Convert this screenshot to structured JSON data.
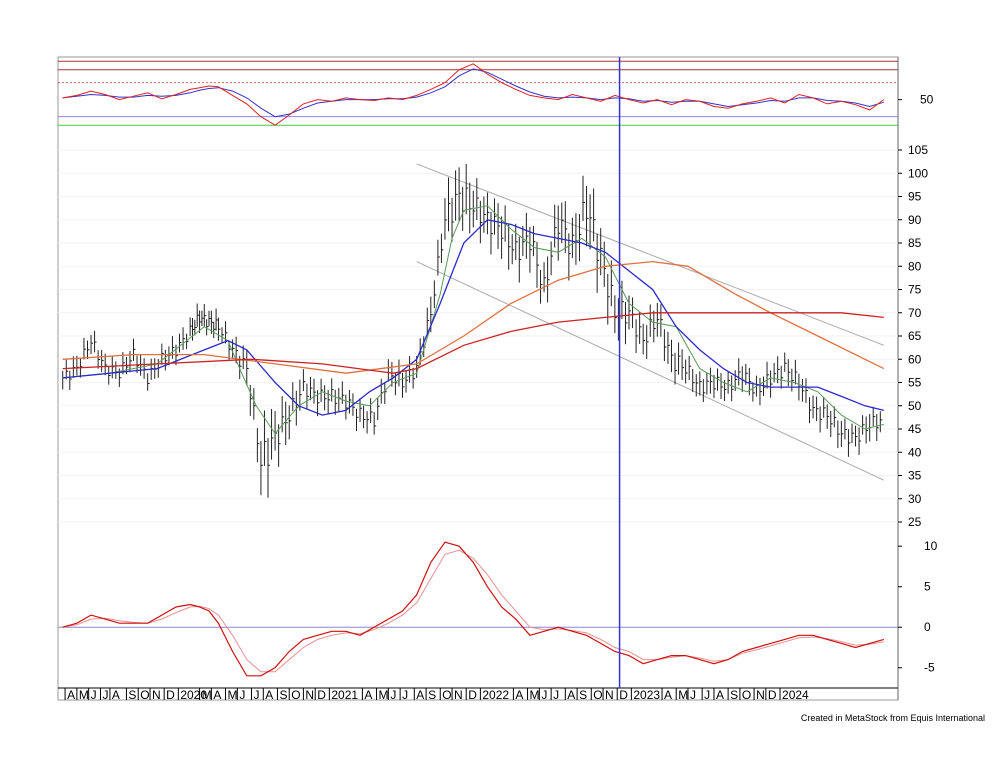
{
  "credit": "Created in MetaStock from Equis International",
  "colors": {
    "price_bars": "#222222",
    "ma_short": "#5a9a5a",
    "ma_mid": "#2a2acc",
    "ma_long_orange": "#e07040",
    "ma_long_red": "#cc2222",
    "channel": "#aaaaaa",
    "cursor": "#3333dd",
    "rsi": "#dd2222",
    "rsi_signal": "#3333cc",
    "macd": "#cc1111",
    "macd_signal": "#e89090",
    "overbought": "#aa3333",
    "oversold": "#8888ee",
    "floor": "#44cc44"
  },
  "chart_data": [
    {
      "panel": "rsi",
      "type": "line",
      "yticks": [
        50
      ],
      "ylim": [
        5,
        100
      ],
      "reference_levels": [
        95,
        85,
        70,
        30,
        20
      ],
      "x": [
        0,
        6,
        12,
        18,
        24,
        30,
        36,
        42,
        48,
        54,
        58,
        62,
        66,
        72,
        78,
        84,
        90,
        96,
        102,
        108,
        114,
        120,
        126,
        132,
        138,
        144,
        150,
        156,
        162,
        168,
        174,
        180,
        186,
        192,
        198,
        204,
        210,
        216,
        222,
        228,
        234,
        240,
        246,
        252,
        258,
        264,
        270,
        276,
        282,
        288,
        294,
        300,
        306,
        312,
        318,
        324,
        330,
        336,
        342,
        348
      ],
      "series": [
        {
          "values": [
            52,
            55,
            60,
            56,
            50,
            54,
            58,
            51,
            56,
            62,
            64,
            66,
            65,
            55,
            45,
            30,
            20,
            32,
            45,
            50,
            48,
            52,
            50,
            49,
            52,
            50,
            55,
            62,
            70,
            85,
            92,
            80,
            70,
            62,
            55,
            52,
            50,
            56,
            52,
            48,
            55,
            50,
            46,
            50,
            44,
            50,
            48,
            42,
            40,
            45,
            48,
            52,
            46,
            56,
            52,
            45,
            48,
            44,
            38,
            50
          ]
        },
        {
          "values": [
            52,
            54,
            56,
            55,
            53,
            53,
            55,
            54,
            55,
            58,
            61,
            63,
            64,
            60,
            52,
            40,
            30,
            33,
            40,
            46,
            48,
            50,
            50,
            50,
            51,
            51,
            53,
            58,
            65,
            78,
            86,
            82,
            74,
            66,
            59,
            54,
            52,
            53,
            52,
            50,
            52,
            51,
            48,
            49,
            47,
            48,
            48,
            45,
            42,
            44,
            46,
            49,
            48,
            52,
            52,
            49,
            48,
            46,
            42,
            47
          ]
        }
      ]
    },
    {
      "panel": "price",
      "type": "ohlc",
      "yticks": [
        25,
        30,
        35,
        40,
        45,
        50,
        55,
        60,
        65,
        70,
        75,
        80,
        85,
        90,
        95,
        100,
        105
      ],
      "ylim": [
        25,
        105
      ],
      "x": [
        0,
        6,
        12,
        18,
        24,
        30,
        36,
        42,
        48,
        54,
        58,
        62,
        66,
        72,
        78,
        84,
        90,
        96,
        102,
        108,
        114,
        120,
        126,
        132,
        138,
        144,
        150,
        156,
        162,
        168,
        174,
        180,
        186,
        192,
        198,
        204,
        210,
        216,
        222,
        228,
        234,
        240,
        246,
        252,
        258,
        264,
        270,
        276,
        282,
        288,
        294,
        300,
        306,
        312,
        318,
        324,
        330,
        336,
        342,
        348
      ],
      "close": [
        56,
        58,
        64,
        58,
        57,
        61,
        56,
        60,
        62,
        66,
        69,
        68,
        67,
        62,
        58,
        38,
        43,
        48,
        54,
        52,
        52,
        51,
        48,
        47,
        57,
        55,
        58,
        70,
        90,
        95,
        93,
        90,
        88,
        83,
        86,
        75,
        90,
        84,
        93,
        82,
        70,
        70,
        64,
        69,
        60,
        58,
        54,
        55,
        54,
        57,
        53,
        56,
        58,
        55,
        49,
        48,
        44,
        43,
        46,
        47
      ],
      "spread": [
        2.5,
        2.5,
        2.5,
        2.5,
        2.5,
        2.5,
        2.5,
        2.5,
        2.5,
        2.5,
        2.5,
        2.5,
        2.5,
        3,
        4,
        7,
        5,
        4,
        3,
        3,
        3,
        3,
        3,
        3,
        3,
        3,
        3,
        4,
        6,
        6,
        5,
        5,
        5,
        5,
        5,
        5,
        6,
        6,
        7,
        6,
        5,
        4,
        4,
        4,
        4,
        3,
        3,
        3,
        3,
        3,
        3,
        3,
        3,
        3,
        3,
        3,
        3,
        3,
        3,
        3
      ],
      "series": [
        {
          "name": "",
          "style": "ma_short",
          "x": [
            0,
            20,
            40,
            60,
            70,
            75,
            82,
            90,
            100,
            110,
            120,
            130,
            140,
            150,
            160,
            165,
            170,
            180,
            190,
            200,
            210,
            220,
            230,
            240,
            250,
            260,
            270,
            280,
            290,
            300,
            310,
            320,
            330,
            340,
            348
          ],
          "values": [
            56,
            57,
            59,
            67,
            64,
            58,
            50,
            44,
            50,
            53,
            51,
            50,
            55,
            57,
            74,
            86,
            92,
            93,
            88,
            84,
            83,
            86,
            82,
            72,
            68,
            67,
            58,
            55,
            53,
            56,
            55,
            53,
            48,
            45,
            46
          ]
        },
        {
          "name": "",
          "style": "ma_mid",
          "x": [
            0,
            20,
            40,
            60,
            70,
            78,
            90,
            100,
            110,
            120,
            130,
            140,
            150,
            160,
            170,
            180,
            190,
            200,
            210,
            220,
            230,
            240,
            250,
            260,
            270,
            280,
            290,
            300,
            310,
            320,
            330,
            340,
            348
          ],
          "values": [
            56,
            57,
            58,
            62,
            64,
            62,
            55,
            50,
            48,
            49,
            53,
            56,
            60,
            72,
            85,
            90,
            89,
            87,
            86,
            85,
            83,
            79,
            75,
            67,
            62,
            58,
            55,
            54,
            54,
            54,
            52,
            50,
            49
          ]
        },
        {
          "name": "",
          "style": "ma_long_orange",
          "x": [
            0,
            30,
            60,
            90,
            120,
            150,
            170,
            190,
            210,
            230,
            250,
            265,
            275,
            285,
            300,
            320,
            340,
            348
          ],
          "values": [
            60,
            61,
            61,
            59,
            57,
            59,
            65,
            72,
            77,
            80,
            81,
            80,
            77,
            74,
            70,
            65,
            60,
            58
          ]
        },
        {
          "name": "",
          "style": "ma_long_red",
          "x": [
            0,
            40,
            80,
            110,
            140,
            150,
            170,
            190,
            210,
            230,
            250,
            270,
            300,
            330,
            348
          ],
          "values": [
            58,
            59,
            60,
            59,
            57,
            58,
            63,
            66,
            68,
            69,
            70,
            70,
            70,
            70,
            69
          ]
        }
      ],
      "channel": [
        {
          "x": [
            150,
            348
          ],
          "values": [
            102,
            63
          ]
        },
        {
          "x": [
            150,
            348
          ],
          "values": [
            81,
            34
          ]
        }
      ]
    },
    {
      "panel": "macd",
      "type": "line",
      "yticks": [
        10,
        5,
        0,
        -5
      ],
      "ylim": [
        -7.5,
        12
      ],
      "x": [
        0,
        6,
        12,
        18,
        24,
        30,
        36,
        42,
        48,
        54,
        58,
        62,
        66,
        72,
        78,
        84,
        90,
        96,
        102,
        108,
        114,
        120,
        126,
        132,
        138,
        144,
        150,
        156,
        162,
        168,
        174,
        180,
        186,
        192,
        198,
        204,
        210,
        216,
        222,
        228,
        234,
        240,
        246,
        252,
        258,
        264,
        270,
        276,
        282,
        288,
        294,
        300,
        306,
        312,
        318,
        324,
        330,
        336,
        342,
        348
      ],
      "series": [
        {
          "values": [
            0,
            0.5,
            1.5,
            1,
            0.5,
            0.5,
            0.5,
            1.5,
            2.5,
            2.8,
            2.5,
            2,
            0.5,
            -3,
            -6,
            -6,
            -5,
            -3,
            -1.5,
            -1,
            -0.5,
            -0.5,
            -1,
            0,
            1,
            2,
            4,
            8,
            10.5,
            10,
            8,
            5,
            2.5,
            1,
            -1,
            -0.5,
            0,
            -0.5,
            -1,
            -2,
            -3,
            -3.5,
            -4.5,
            -4,
            -3.5,
            -3.5,
            -4,
            -4.5,
            -4,
            -3,
            -2.5,
            -2,
            -1.5,
            -1,
            -1,
            -1.5,
            -2,
            -2.5,
            -2,
            -1.5
          ]
        },
        {
          "values": [
            0,
            0.3,
            1,
            1.1,
            0.8,
            0.6,
            0.5,
            1,
            1.8,
            2.5,
            2.6,
            2.3,
            1.5,
            -1,
            -4,
            -5.5,
            -5.5,
            -4,
            -2.5,
            -1.5,
            -1,
            -0.7,
            -0.8,
            -0.3,
            0.5,
            1.5,
            3,
            6,
            9,
            9.5,
            8.5,
            6.5,
            4,
            2,
            0,
            -0.3,
            -0.2,
            -0.4,
            -0.7,
            -1.5,
            -2.5,
            -3,
            -4,
            -4,
            -3.7,
            -3.5,
            -3.8,
            -4.2,
            -4,
            -3.2,
            -2.8,
            -2.3,
            -1.8,
            -1.3,
            -1.2,
            -1.4,
            -1.8,
            -2.2,
            -2.1,
            -1.8
          ]
        }
      ]
    }
  ],
  "x_axis": {
    "ticks": [
      {
        "label": "A",
        "x": 1
      },
      {
        "label": "M",
        "x": 6
      },
      {
        "label": "J",
        "x": 11
      },
      {
        "label": "J",
        "x": 16
      },
      {
        "label": "A",
        "x": 20
      },
      {
        "label": "S",
        "x": 27
      },
      {
        "label": "O",
        "x": 32
      },
      {
        "label": "N",
        "x": 37
      },
      {
        "label": "D",
        "x": 43
      },
      {
        "label": "2020",
        "x": 49
      },
      {
        "label": "M",
        "x": 58
      },
      {
        "label": "A",
        "x": 63
      },
      {
        "label": "M",
        "x": 69
      },
      {
        "label": "J",
        "x": 74
      },
      {
        "label": "J",
        "x": 80
      },
      {
        "label": "A",
        "x": 85
      },
      {
        "label": "S",
        "x": 91
      },
      {
        "label": "O",
        "x": 96
      },
      {
        "label": "N",
        "x": 102
      },
      {
        "label": "D",
        "x": 107
      },
      {
        "label": "2021",
        "x": 113
      },
      {
        "label": "A",
        "x": 127
      },
      {
        "label": "M",
        "x": 133
      },
      {
        "label": "J",
        "x": 138
      },
      {
        "label": "J",
        "x": 143
      },
      {
        "label": "A",
        "x": 149
      },
      {
        "label": "S",
        "x": 154
      },
      {
        "label": "O",
        "x": 160
      },
      {
        "label": "N",
        "x": 165
      },
      {
        "label": "D",
        "x": 171
      },
      {
        "label": "2022",
        "x": 177
      },
      {
        "label": "A",
        "x": 191
      },
      {
        "label": "M",
        "x": 197
      },
      {
        "label": "J",
        "x": 202
      },
      {
        "label": "J",
        "x": 207
      },
      {
        "label": "A",
        "x": 213
      },
      {
        "label": "S",
        "x": 218
      },
      {
        "label": "O",
        "x": 224
      },
      {
        "label": "N",
        "x": 229
      },
      {
        "label": "D",
        "x": 235
      },
      {
        "label": "2023",
        "x": 241
      },
      {
        "label": "A",
        "x": 254
      },
      {
        "label": "M",
        "x": 260
      },
      {
        "label": "J",
        "x": 265
      },
      {
        "label": "J",
        "x": 271
      },
      {
        "label": "A",
        "x": 276
      },
      {
        "label": "S",
        "x": 282
      },
      {
        "label": "O",
        "x": 287
      },
      {
        "label": "N",
        "x": 293
      },
      {
        "label": "D",
        "x": 298
      },
      {
        "label": "2024",
        "x": 304
      }
    ],
    "xlim": [
      -2,
      354
    ],
    "cursor_x": 236
  }
}
